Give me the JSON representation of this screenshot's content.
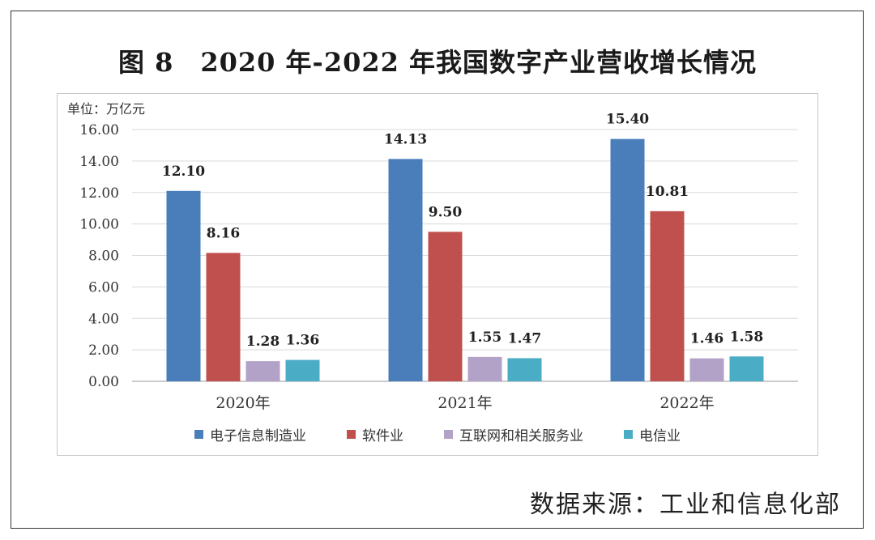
{
  "title": "图 8　2020 年-2022 年我国数字产业营收增长情况",
  "unit": "单位：万亿元",
  "source": "数据来源：工业和信息化部",
  "chart_data": {
    "type": "bar",
    "categories": [
      "2020年",
      "2021年",
      "2022年"
    ],
    "ylim": [
      0,
      16
    ],
    "ytick_labels": [
      "0.00",
      "2.00",
      "4.00",
      "6.00",
      "8.00",
      "10.00",
      "12.00",
      "14.00",
      "16.00"
    ],
    "grid": true,
    "legend_position": "bottom",
    "series": [
      {
        "name": "电子信息制造业",
        "color": "#4a7ebb",
        "values": [
          12.1,
          14.13,
          15.4
        ],
        "labels": [
          "12.10",
          "14.13",
          "15.40"
        ]
      },
      {
        "name": "软件业",
        "color": "#c0504d",
        "values": [
          8.16,
          9.5,
          10.81
        ],
        "labels": [
          "8.16",
          "9.50",
          "10.81"
        ]
      },
      {
        "name": "互联网和相关服务业",
        "color": "#b3a2c7",
        "values": [
          1.28,
          1.55,
          1.46
        ],
        "labels": [
          "1.28",
          "1.55",
          "1.46"
        ]
      },
      {
        "name": "电信业",
        "color": "#4bacc6",
        "values": [
          1.36,
          1.47,
          1.58
        ],
        "labels": [
          "1.36",
          "1.47",
          "1.58"
        ]
      }
    ]
  }
}
